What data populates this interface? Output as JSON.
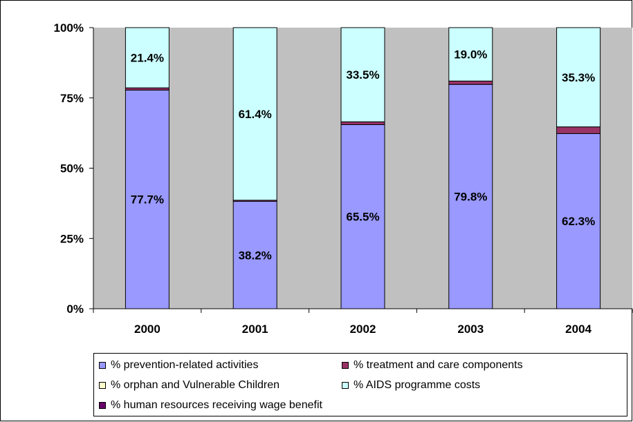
{
  "chart_data": {
    "type": "bar",
    "stacked": true,
    "normalized": true,
    "categories": [
      "2000",
      "2001",
      "2002",
      "2003",
      "2004"
    ],
    "series": [
      {
        "name": "% prevention-related activities",
        "values": [
          77.7,
          38.2,
          65.5,
          79.8,
          62.3
        ],
        "color": "#9999ff",
        "labels": [
          "77.7%",
          "38.2%",
          "65.5%",
          "79.8%",
          "62.3%"
        ]
      },
      {
        "name": "% treatment and care components",
        "values": [
          0.8,
          0.4,
          1.0,
          1.2,
          2.4
        ],
        "color": "#993366"
      },
      {
        "name": "% orphan and Vulnerable Children",
        "values": [
          0,
          0,
          0,
          0,
          0
        ],
        "color": "#ffffcc"
      },
      {
        "name": "% AIDS programme costs",
        "values": [
          21.4,
          61.4,
          33.5,
          19.0,
          35.3
        ],
        "color": "#ccffff",
        "labels": [
          "21.4%",
          "61.4%",
          "33.5%",
          "19.0%",
          "35.3%"
        ]
      },
      {
        "name": "% human resources receiving wage benefit",
        "values": [
          0,
          0,
          0,
          0,
          0
        ],
        "color": "#660066"
      }
    ],
    "yticks": [
      "0%",
      "25%",
      "50%",
      "75%",
      "100%"
    ],
    "ylim": [
      0,
      100
    ],
    "plot_background": "#c0c0c0",
    "legend_position": "bottom"
  }
}
